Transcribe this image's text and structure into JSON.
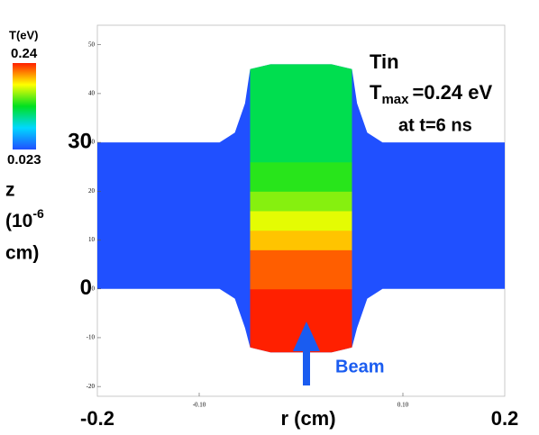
{
  "chart_data": {
    "type": "field",
    "annotations": {
      "material": "Tin",
      "tmax_symbol": "T",
      "tmax_sub": "max",
      "tmax_text": "=0.24 eV",
      "time": "at t=6 ns",
      "beam": "Beam"
    },
    "colorbar": {
      "title": "T(eV)",
      "clim": [
        0.023,
        0.24
      ],
      "clim_labels": [
        "0.023",
        "0.24"
      ],
      "colormap": [
        "#2050ff",
        "#00d8ff",
        "#00e020",
        "#ffff00",
        "#ff2000"
      ]
    },
    "ylabel": {
      "z": "z",
      "unit_open": "(10",
      "unit_exp": "-6",
      "unit_close": "cm)"
    },
    "xlabel": "r (cm)",
    "xlim": [
      -0.2,
      0.2
    ],
    "ylim": [
      -22,
      54
    ],
    "xticks": [
      {
        "value": -0.1,
        "label": "-0.10"
      },
      {
        "value": 0.1,
        "label": "0.10"
      }
    ],
    "yticks": [
      -20,
      -10,
      0,
      10,
      20,
      30,
      40,
      50
    ],
    "major_xticks": [
      -0.2,
      0.2
    ],
    "major_yticks": [
      0,
      30
    ],
    "r": [
      -0.2,
      -0.08,
      -0.065,
      -0.055,
      -0.05,
      -0.03,
      0,
      0.03,
      0.05,
      0.055,
      0.065,
      0.08,
      0.2
    ],
    "z_top": [
      30,
      30,
      32,
      38,
      45,
      46,
      46,
      46,
      45,
      38,
      32,
      30,
      30
    ],
    "z_bottom": [
      0,
      0,
      -2,
      -8,
      -12,
      -13,
      -13,
      -13,
      -12,
      -8,
      -2,
      0,
      0
    ],
    "column": {
      "r_range": [
        -0.05,
        0.05
      ],
      "z_edges": [
        -13,
        0,
        8,
        12,
        16,
        20,
        26,
        46
      ],
      "T": [
        0.24,
        0.225,
        0.2,
        0.18,
        0.16,
        0.14,
        0.12
      ]
    }
  }
}
